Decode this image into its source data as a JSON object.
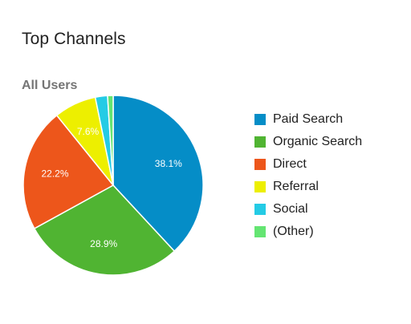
{
  "title": "Top Channels",
  "segment": "All Users",
  "chart_data": {
    "type": "pie",
    "categories": [
      "Paid Search",
      "Organic Search",
      "Direct",
      "Referral",
      "Social",
      "(Other)"
    ],
    "values": [
      38.1,
      28.9,
      22.2,
      7.6,
      2.2,
      1.0
    ],
    "value_labels": [
      "38.1%",
      "28.9%",
      "22.2%",
      "7.6%",
      "",
      ""
    ],
    "colors": [
      "#058dc7",
      "#50b432",
      "#ed561b",
      "#edef00",
      "#24cbe5",
      "#64e572"
    ],
    "legend_placement": "right",
    "start_angle": "top",
    "direction": "clockwise"
  }
}
